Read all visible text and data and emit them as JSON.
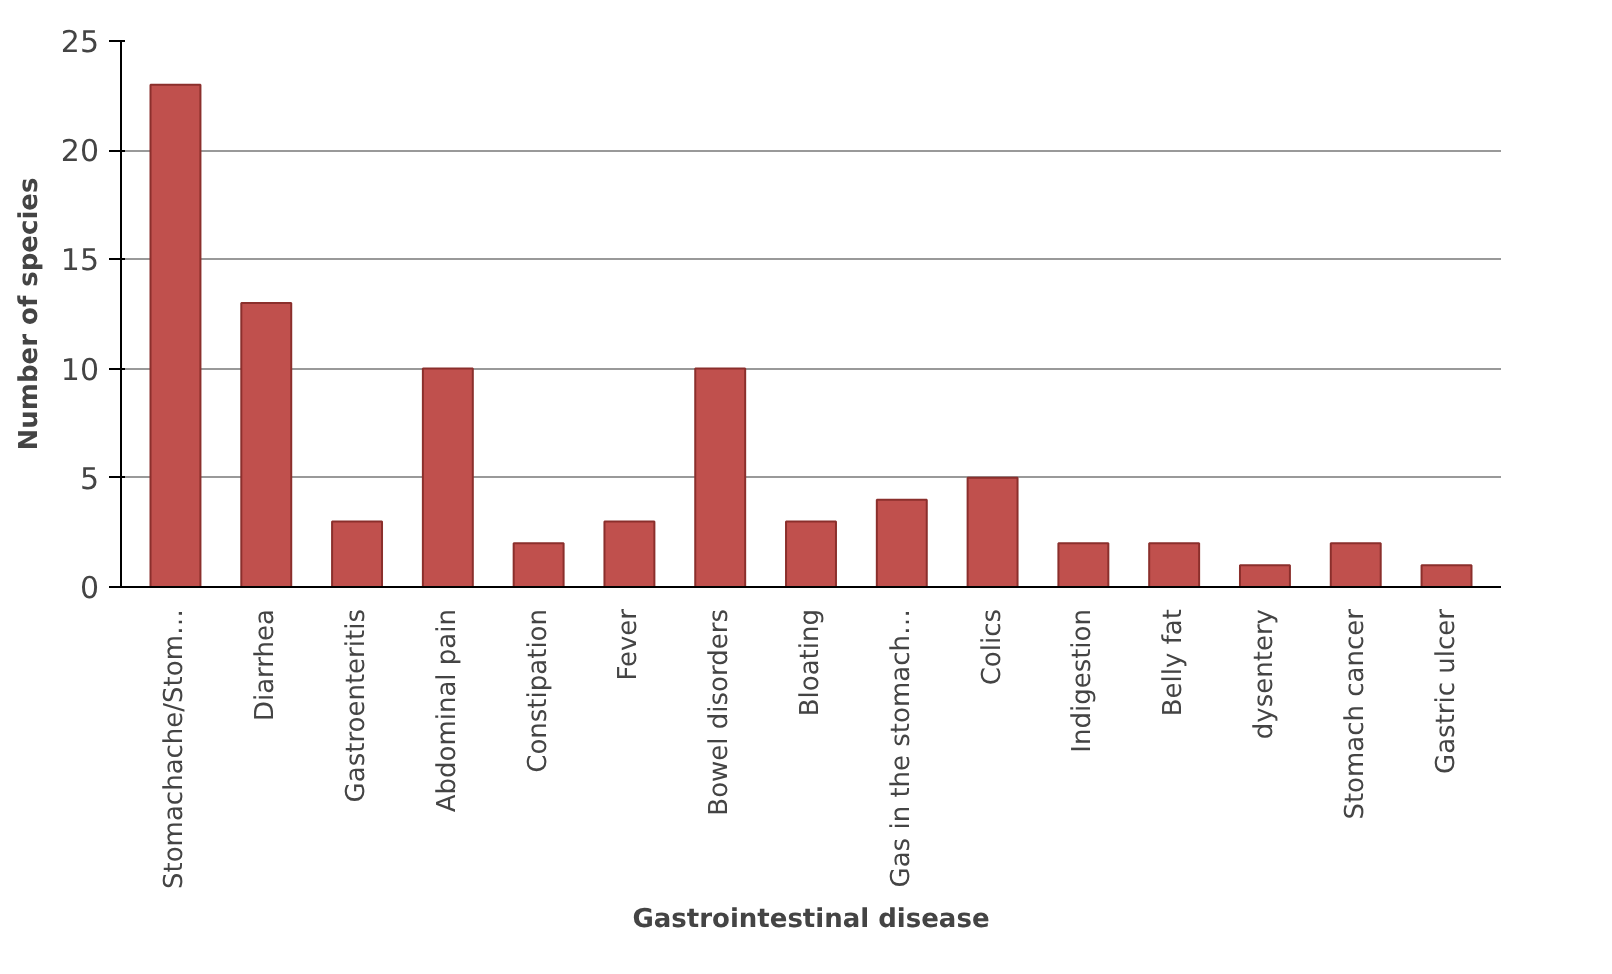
{
  "chart_data": {
    "type": "bar",
    "xlabel": "Gastrointestinal disease",
    "ylabel": "Number of species",
    "categories": [
      "Stomachache/Stom…",
      "Diarrhea",
      "Gastroenteritis",
      "Abdominal pain",
      "Constipation",
      "Fever",
      "Bowel disorders",
      "Bloating",
      "Gas in the stomach…",
      "Colics",
      "Indigestion",
      "Belly fat",
      "dysentery",
      "Stomach cancer",
      "Gastric ulcer"
    ],
    "values": [
      23,
      13,
      3,
      10,
      2,
      3,
      10,
      3,
      4,
      5,
      2,
      2,
      1,
      2,
      1
    ],
    "color": "#c0504d",
    "ylim": [
      0,
      25
    ],
    "yticks": [
      0,
      5,
      10,
      15,
      20,
      25
    ],
    "grid": "y"
  }
}
